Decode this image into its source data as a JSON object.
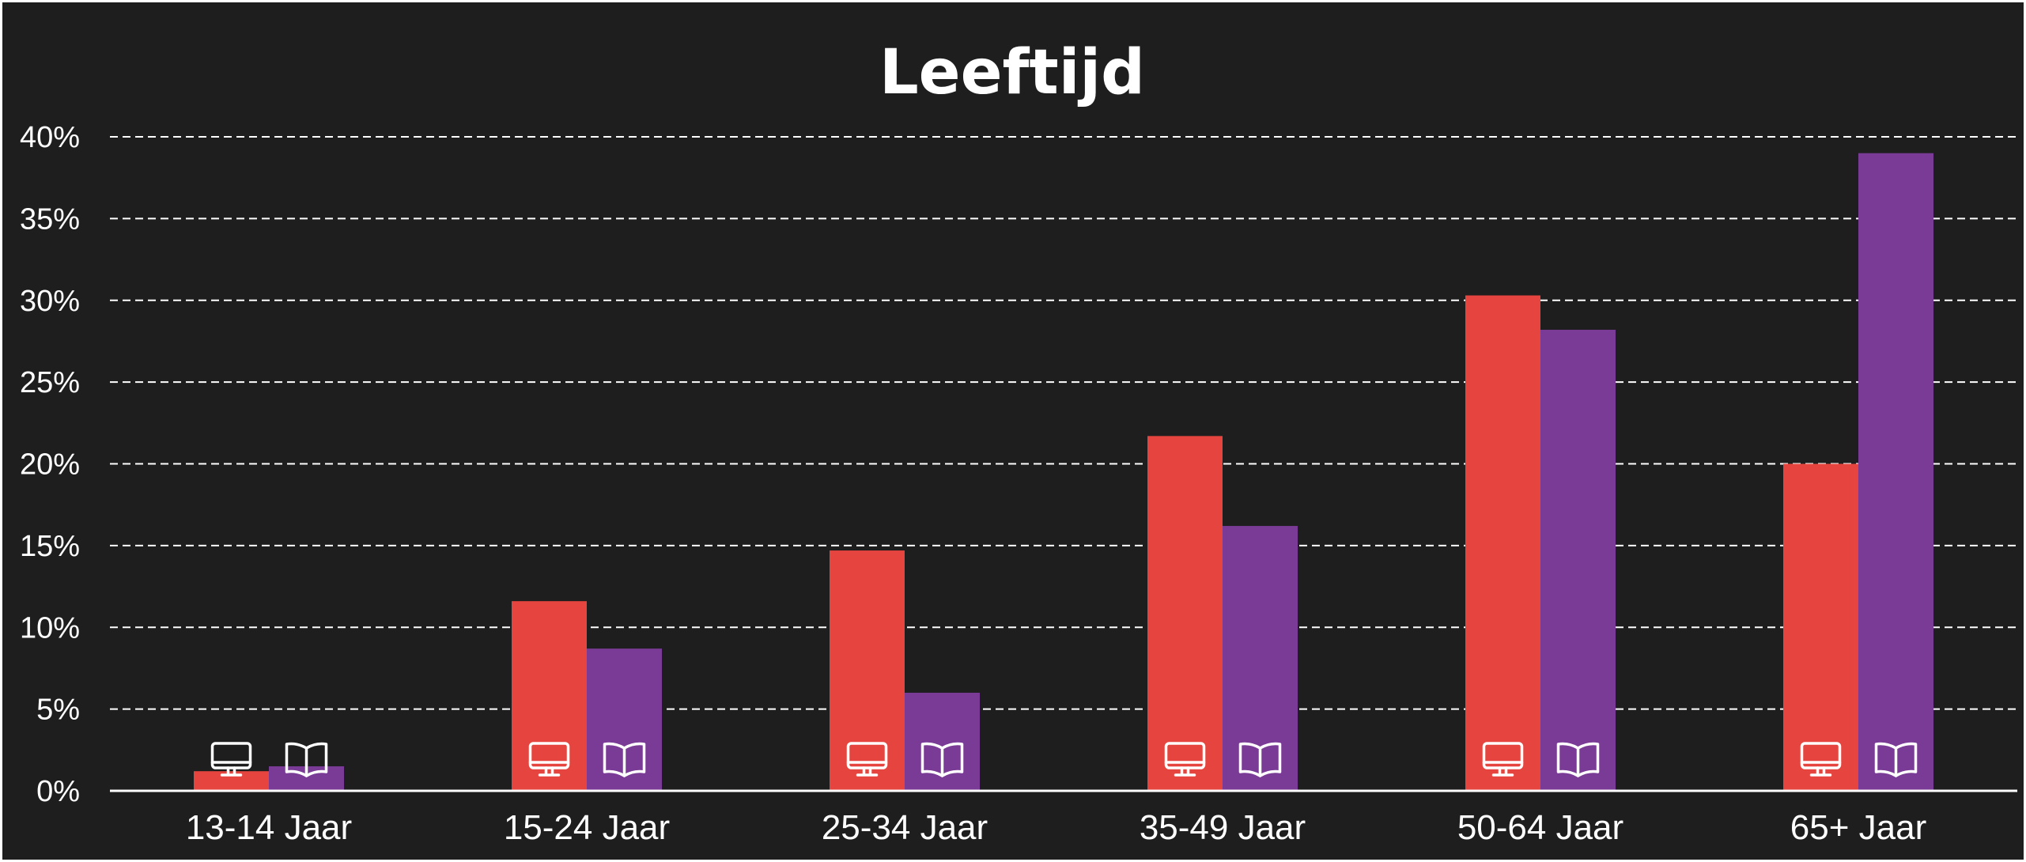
{
  "chart_data": {
    "type": "bar",
    "title": "Leeftijd",
    "categories": [
      "13-14 Jaar",
      "15-24 Jaar",
      "25-34 Jaar",
      "35-49 Jaar",
      "50-64 Jaar",
      "65+ Jaar"
    ],
    "series": [
      {
        "icon": "monitor-icon",
        "color": "#e5453e",
        "values": [
          1.2,
          11.6,
          14.7,
          21.7,
          30.3,
          20.0
        ]
      },
      {
        "icon": "book-icon",
        "color": "#7a3b96",
        "values": [
          1.5,
          8.7,
          6.0,
          16.2,
          28.2,
          39.0
        ]
      }
    ],
    "yticks": [
      "0%",
      "5%",
      "10%",
      "15%",
      "20%",
      "25%",
      "30%",
      "35%",
      "40%"
    ],
    "ylim": [
      0,
      40
    ],
    "grid": true
  },
  "colors": {
    "background": "#1e1e1e",
    "text": "#ffffff",
    "grid": "#ffffff"
  }
}
